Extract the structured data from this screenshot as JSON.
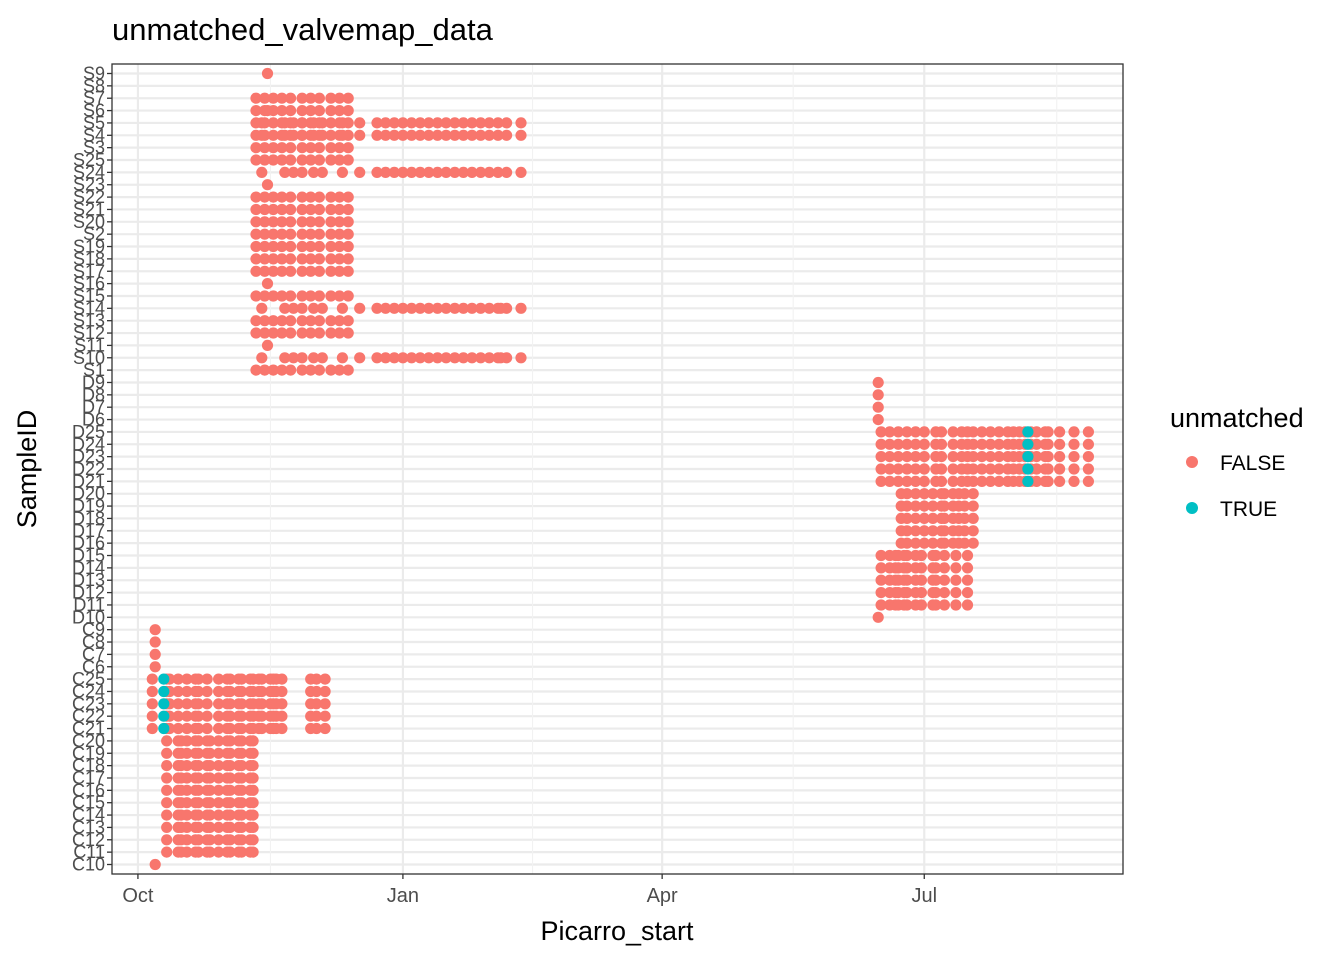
{
  "chart_data": {
    "type": "scatter",
    "title": "unmatched_valvemap_data",
    "xlabel": "Picarro_start",
    "ylabel": "SampleID",
    "x_ticks": [
      "Oct",
      "Jan",
      "Apr",
      "Jul"
    ],
    "x_tick_days": [
      0,
      92,
      182,
      273
    ],
    "xlim_days": [
      -9,
      342
    ],
    "x_origin": "Oct 1",
    "grid": true,
    "legend": {
      "title": "unmatched",
      "position": "right",
      "entries": [
        {
          "label": "FALSE",
          "color": "#F8766D"
        },
        {
          "label": "TRUE",
          "color": "#00BFC4"
        }
      ]
    },
    "y_categories": [
      "C10",
      "C11",
      "C12",
      "C13",
      "C14",
      "C15",
      "C16",
      "C17",
      "C18",
      "C19",
      "C20",
      "C21",
      "C22",
      "C23",
      "C24",
      "C25",
      "C6",
      "C7",
      "C8",
      "C9",
      "D10",
      "D11",
      "D12",
      "D13",
      "D14",
      "D15",
      "D16",
      "D17",
      "D18",
      "D19",
      "D20",
      "D21",
      "D22",
      "D23",
      "D24",
      "D25",
      "D6",
      "D7",
      "D8",
      "D9",
      "S1",
      "S10",
      "S11",
      "S12",
      "S13",
      "S14",
      "S15",
      "S16",
      "S17",
      "S18",
      "S19",
      "S2",
      "S20",
      "S21",
      "S22",
      "S23",
      "S24",
      "S25",
      "S3",
      "S4",
      "S5",
      "S6",
      "S7",
      "S8",
      "S9"
    ],
    "y_tick_labels": [
      "C10",
      "C11",
      "C12",
      "C13",
      "C14",
      "C15",
      "C16",
      "C17",
      "C18",
      "C19",
      "C20",
      "C21",
      "C22",
      "C23",
      "C24",
      "C25",
      "C6",
      "C7",
      "C8",
      "C9",
      "D10",
      "D11",
      "D12",
      "D13",
      "D14",
      "D15",
      "D16",
      "D17",
      "D18",
      "D19",
      "D20",
      "D21",
      "D22",
      "D23",
      "D24",
      "D25",
      "D6",
      "D7",
      "D8",
      "D9",
      "S1",
      "S10",
      "S11",
      "S12",
      "S13",
      "S14",
      "S15",
      "S16",
      "S17",
      "S18",
      "S19",
      "S2",
      "S20",
      "S21",
      "S22",
      "S23",
      "S24",
      "S25",
      "S3",
      "S4",
      "S5",
      "S6",
      "S7",
      "S8",
      "S9"
    ],
    "series": [
      {
        "name": "FALSE",
        "color": "#F8766D",
        "groups": [
          {
            "ids": [
              "C10"
            ],
            "days": [
              6
            ]
          },
          {
            "ids": [
              "C11",
              "C12",
              "C13",
              "C14",
              "C15",
              "C16",
              "C17",
              "C18",
              "C19",
              "C20"
            ],
            "days": [
              10,
              14,
              15,
              17,
              20,
              21,
              24,
              25,
              28,
              31,
              32,
              35,
              36,
              39,
              40
            ]
          },
          {
            "ids": [
              "C21",
              "C22",
              "C23",
              "C24",
              "C25"
            ],
            "days": [
              5,
              14,
              17,
              20,
              21,
              24,
              28,
              31,
              32,
              35,
              36,
              39,
              40,
              42,
              43,
              46,
              47,
              48,
              50,
              60,
              62,
              65
            ]
          },
          {
            "ids": [
              "C21",
              "C22",
              "C23",
              "C24",
              "C25"
            ],
            "days": [
              10,
              11
            ]
          },
          {
            "ids": [
              "C6",
              "C7",
              "C8",
              "C9"
            ],
            "days": [
              6
            ]
          },
          {
            "ids": [
              "D10"
            ],
            "days": [
              257
            ]
          },
          {
            "ids": [
              "D11",
              "D12",
              "D13",
              "D14",
              "D15"
            ],
            "days": [
              258,
              261,
              263,
              264,
              266,
              267,
              270,
              272,
              276,
              277,
              280,
              284,
              288
            ]
          },
          {
            "ids": [
              "D16",
              "D17",
              "D18",
              "D19",
              "D20"
            ],
            "days": [
              265,
              267,
              270,
              273,
              276,
              279,
              280,
              283,
              285,
              287,
              290
            ]
          },
          {
            "ids": [
              "D21",
              "D22",
              "D23",
              "D24",
              "D25"
            ],
            "days": [
              258,
              261,
              264,
              267,
              270,
              273,
              277,
              279,
              283,
              286,
              288,
              290,
              293,
              296,
              299,
              302,
              304,
              306,
              308,
              310,
              312,
              315,
              316,
              320,
              325,
              330
            ]
          },
          {
            "ids": [
              "D6",
              "D7",
              "D8",
              "D9"
            ],
            "days": [
              257
            ]
          },
          {
            "ids": [
              "S1"
            ],
            "days": [
              41,
              44,
              47,
              50,
              53,
              57,
              60,
              63,
              67,
              70,
              73
            ]
          },
          {
            "ids": [
              "S10",
              "S14"
            ],
            "days": [
              43,
              51,
              54,
              57,
              61,
              64,
              71,
              77,
              83,
              86,
              89,
              92,
              95,
              98,
              101,
              104,
              107,
              110,
              113,
              116,
              119,
              122,
              125,
              128,
              133
            ]
          },
          {
            "ids": [
              "S10",
              "S14"
            ],
            "days": [
              126
            ]
          },
          {
            "ids": [
              "S11"
            ],
            "days": [
              45
            ]
          },
          {
            "ids": [
              "S12",
              "S13",
              "S15",
              "S17",
              "S18",
              "S19",
              "S2",
              "S20",
              "S21",
              "S22",
              "S25",
              "S3",
              "S4",
              "S5",
              "S6",
              "S7"
            ],
            "days": [
              41,
              44,
              47,
              50,
              53,
              57,
              60,
              63,
              67,
              70,
              73
            ]
          },
          {
            "ids": [
              "S16",
              "S23",
              "S9"
            ],
            "days": [
              45
            ]
          },
          {
            "ids": [
              "S24",
              "S5",
              "S4"
            ],
            "days": [
              43,
              51,
              54,
              57,
              61,
              64,
              71,
              77,
              83,
              86,
              89,
              92,
              95,
              98,
              101,
              104,
              107,
              110,
              113,
              116,
              119,
              122,
              125,
              128,
              133
            ]
          },
          {
            "ids": [
              "S6"
            ],
            "days": [
              45
            ]
          }
        ]
      },
      {
        "name": "TRUE",
        "color": "#00BFC4",
        "groups": [
          {
            "ids": [
              "C21",
              "C22",
              "C23",
              "C24",
              "C25"
            ],
            "days": [
              9
            ]
          },
          {
            "ids": [
              "D21",
              "D22",
              "D23",
              "D24",
              "D25"
            ],
            "days": [
              309
            ]
          }
        ]
      }
    ]
  }
}
